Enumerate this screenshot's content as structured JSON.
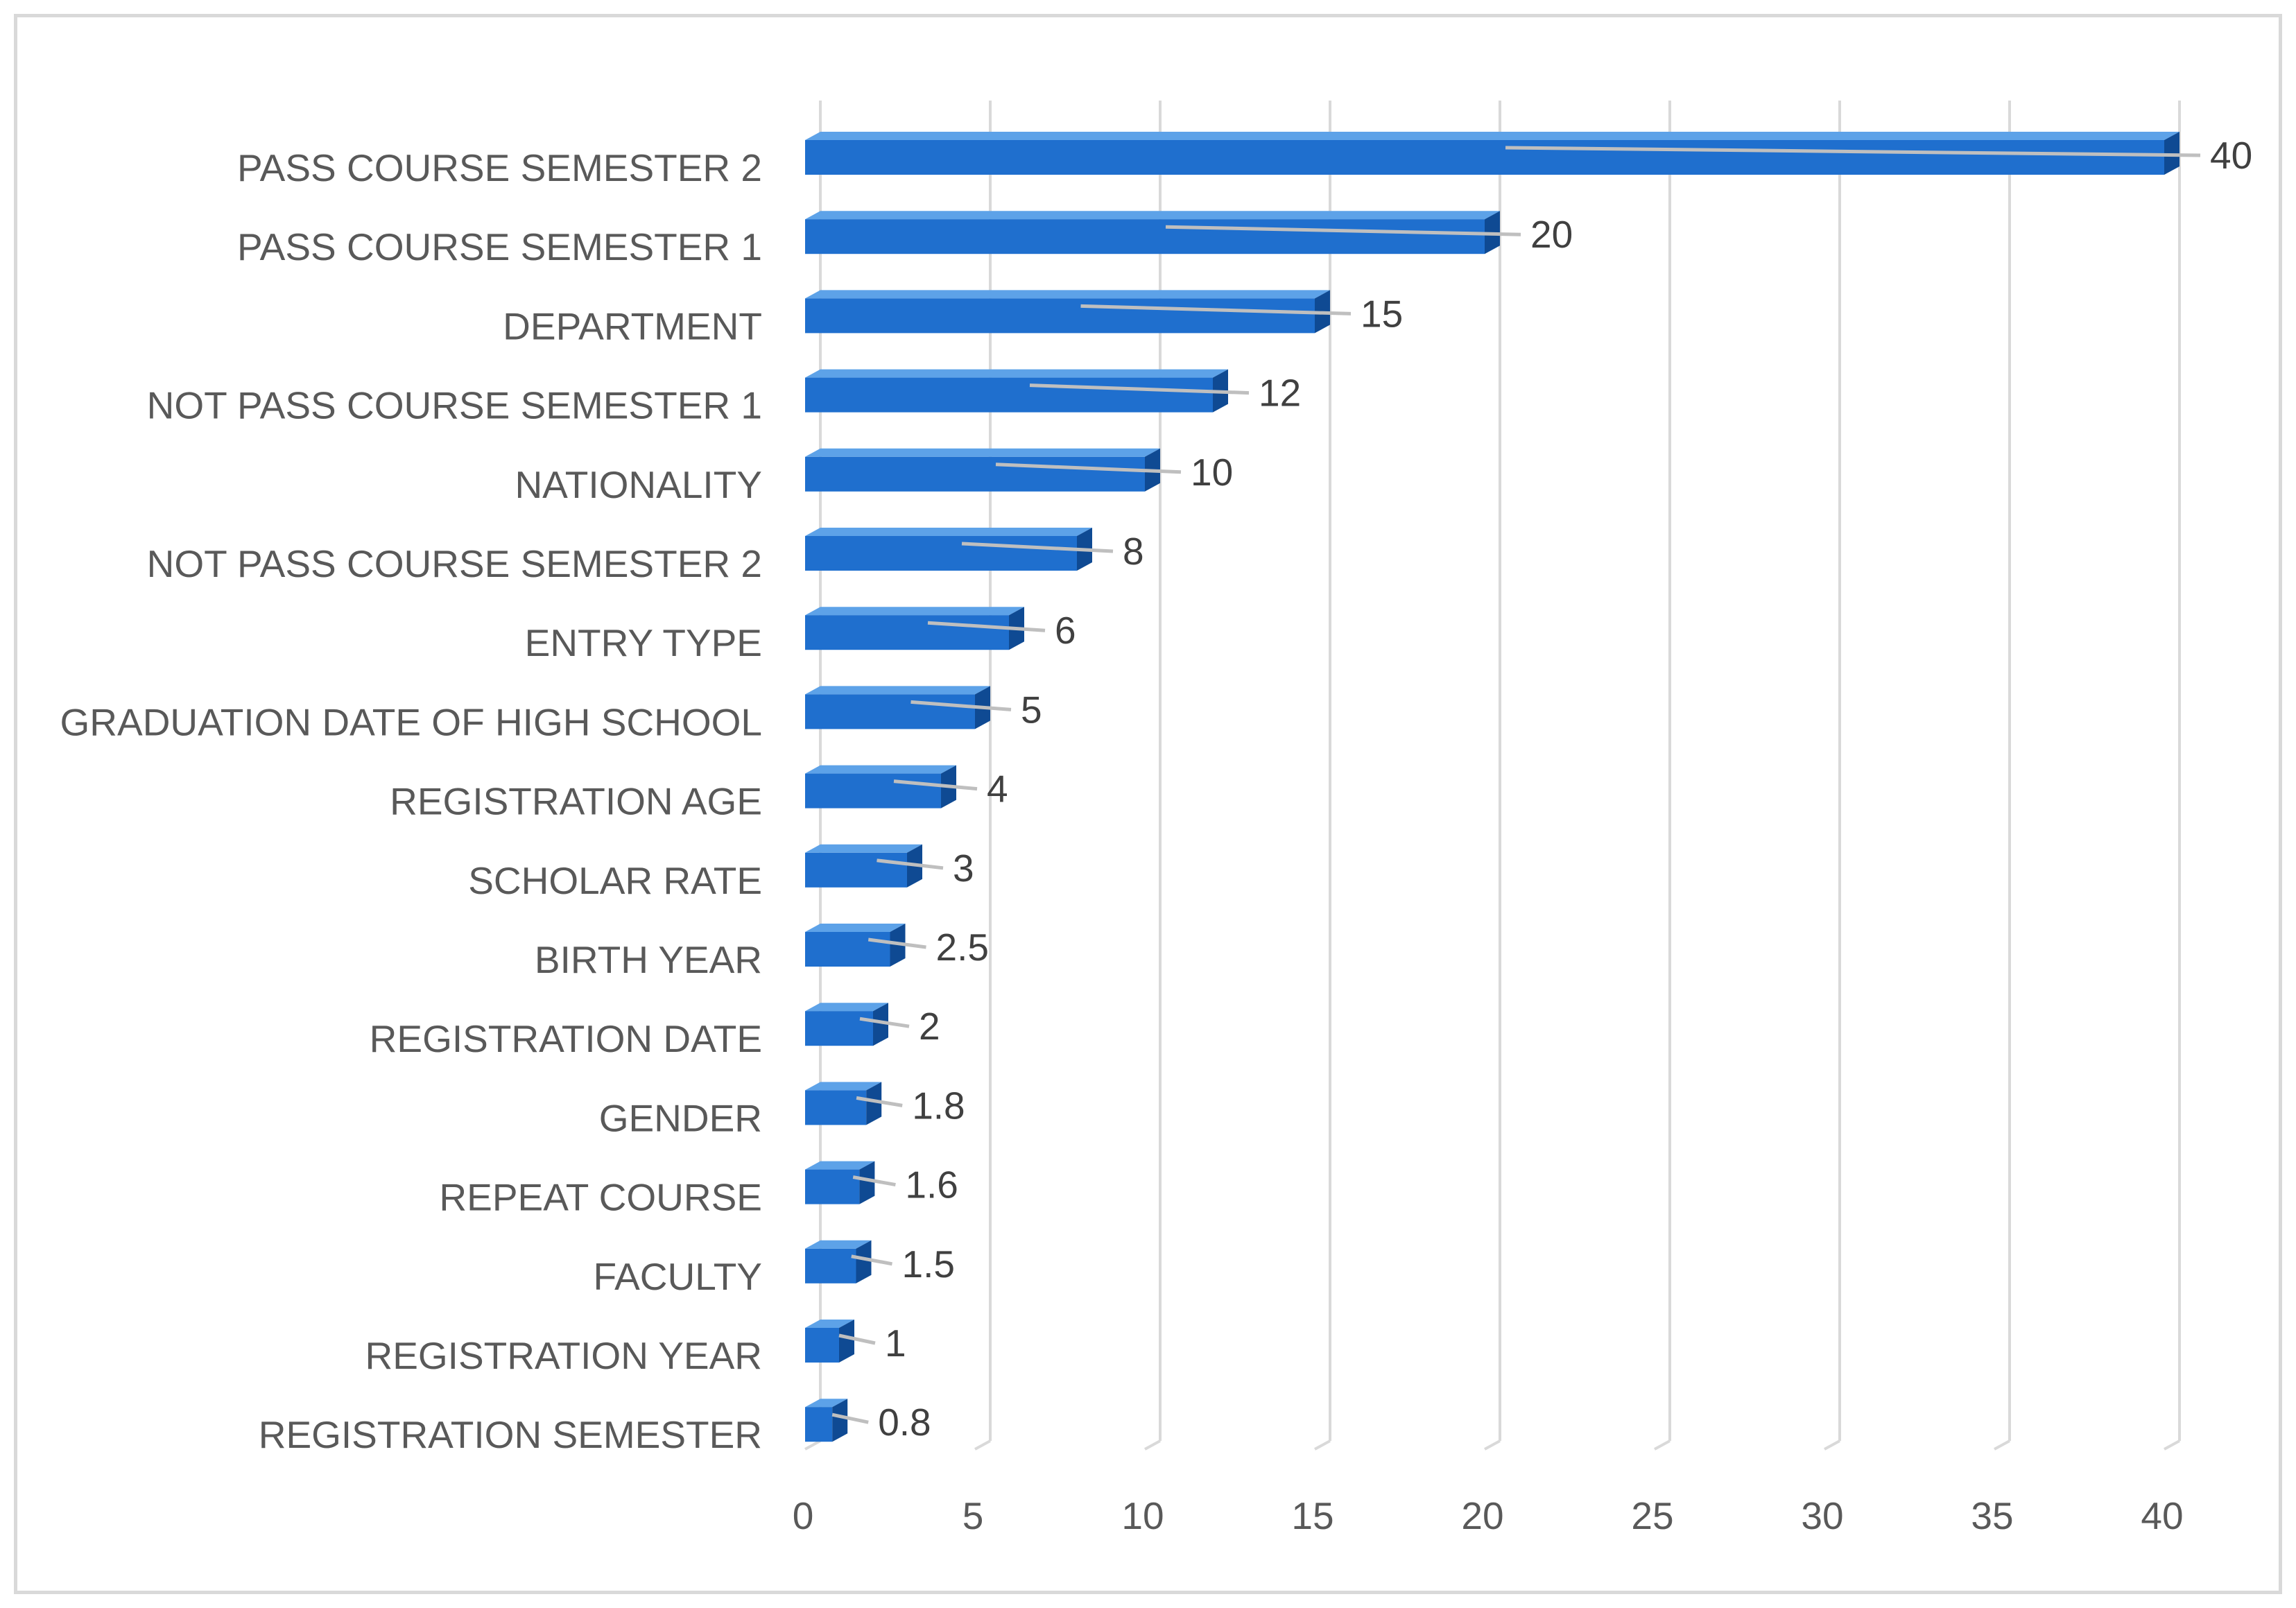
{
  "chart_data": {
    "type": "bar",
    "orientation": "horizontal",
    "style": "3d",
    "title": "",
    "xlabel": "",
    "ylabel": "",
    "xlim": [
      0,
      40
    ],
    "xticks": [
      "0",
      "5",
      "10",
      "15",
      "20",
      "25",
      "30",
      "35",
      "40"
    ],
    "grid": "vertical",
    "legend": "none",
    "bar_color": "#1f6fce",
    "bar_side_color": "#0f4a93",
    "bar_top_color": "#5da2e8",
    "categories": [
      "PASS COURSE SEMESTER 2",
      "PASS COURSE SEMESTER 1",
      "DEPARTMENT",
      "NOT PASS COURSE SEMESTER 1",
      "NATIONALITY",
      "NOT PASS COURSE SEMESTER 2",
      "ENTRY TYPE",
      "GRADUATION DATE OF HIGH SCHOOL",
      "REGISTRATION AGE",
      "SCHOLAR RATE",
      "BIRTH YEAR",
      "REGISTRATION DATE",
      "GENDER",
      "REPEAT COURSE",
      "FACULTY",
      "REGISTRATION YEAR",
      "REGISTRATION SEMESTER"
    ],
    "values": [
      40,
      20,
      15,
      12,
      10,
      8,
      6,
      5,
      4,
      3,
      2.5,
      2,
      1.8,
      1.6,
      1.5,
      1,
      0.8
    ],
    "data_labels": [
      "40",
      "20",
      "15",
      "12",
      "10",
      "8",
      "6",
      "5",
      "4",
      "3",
      "2.5",
      "2",
      "1.8",
      "1.6",
      "1.5",
      "1",
      "0.8"
    ]
  }
}
